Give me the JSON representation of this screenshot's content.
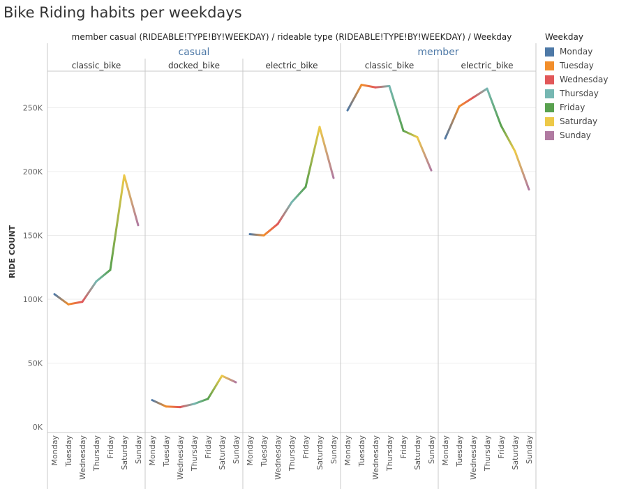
{
  "title": "Bike Riding habits per weekdays",
  "subtitle": "member casual (RIDEABLE!TYPE!BY!WEEKDAY)  /  rideable type (RIDEABLE!TYPE!BY!WEEKDAY)  /  Weekday",
  "legend": {
    "title": "Weekday",
    "items": [
      {
        "label": "Monday",
        "color": "#4e79a7"
      },
      {
        "label": "Tuesday",
        "color": "#f28e2b"
      },
      {
        "label": "Wednesday",
        "color": "#e15759"
      },
      {
        "label": "Thursday",
        "color": "#76b7b2"
      },
      {
        "label": "Friday",
        "color": "#59a14f"
      },
      {
        "label": "Saturday",
        "color": "#edc948"
      },
      {
        "label": "Sunday",
        "color": "#b07aa1"
      }
    ]
  },
  "chart_data": {
    "type": "line",
    "ylabel": "RIDE COUNT",
    "ylim": [
      0,
      280000
    ],
    "yticks": [
      {
        "value": 0,
        "label": "0K"
      },
      {
        "value": 50000,
        "label": "50K"
      },
      {
        "value": 100000,
        "label": "100K"
      },
      {
        "value": 150000,
        "label": "150K"
      },
      {
        "value": 200000,
        "label": "200K"
      },
      {
        "value": 250000,
        "label": "250K"
      }
    ],
    "grid": true,
    "categories": [
      "Monday",
      "Tuesday",
      "Wednesday",
      "Thursday",
      "Friday",
      "Saturday",
      "Sunday"
    ],
    "groups": [
      {
        "name": "casual",
        "panels": [
          {
            "name": "classic_bike",
            "values": [
              104000,
              96000,
              98000,
              114000,
              123000,
              197000,
              158000
            ]
          },
          {
            "name": "docked_bike",
            "values": [
              21000,
              16000,
              15500,
              18000,
              22000,
              40000,
              35000
            ]
          },
          {
            "name": "electric_bike",
            "values": [
              151000,
              150000,
              159000,
              176000,
              188000,
              235000,
              195000
            ]
          }
        ]
      },
      {
        "name": "member",
        "panels": [
          {
            "name": "classic_bike",
            "values": [
              248000,
              268000,
              266000,
              267000,
              232000,
              227000,
              201000
            ]
          },
          {
            "name": "electric_bike",
            "values": [
              226000,
              251000,
              258000,
              265000,
              236000,
              216000,
              186000
            ]
          }
        ]
      }
    ]
  }
}
